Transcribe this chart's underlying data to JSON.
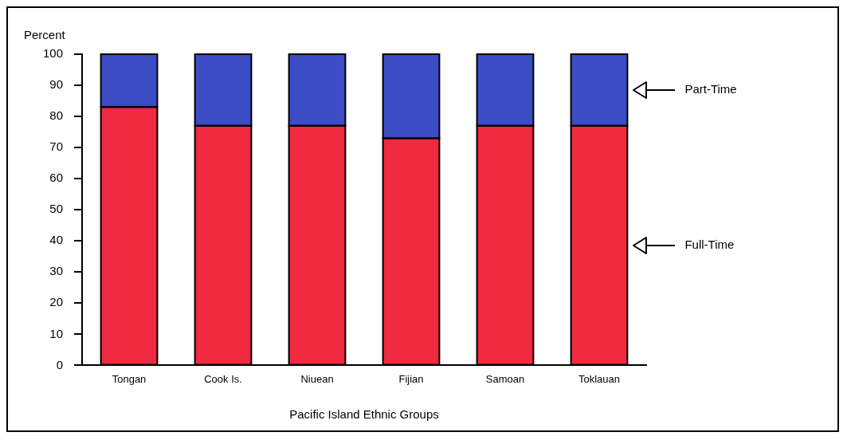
{
  "chart_data": {
    "type": "bar",
    "stacked": true,
    "ylabel": "Percent",
    "xlabel": "Pacific Island Ethnic Groups",
    "categories": [
      "Tongan",
      "Cook Is.",
      "Niuean",
      "Fijian",
      "Samoan",
      "Toklauan"
    ],
    "series": [
      {
        "name": "Full-Time",
        "color": "#f02a40",
        "values": [
          83,
          77,
          77,
          73,
          77,
          77
        ]
      },
      {
        "name": "Part-Time",
        "color": "#3c4cc4",
        "values": [
          17,
          23,
          23,
          27,
          23,
          23
        ]
      }
    ],
    "ylim": [
      0,
      100
    ],
    "yticks": [
      0,
      10,
      20,
      30,
      40,
      50,
      60,
      70,
      80,
      90,
      100
    ],
    "grid": false,
    "legend": "right"
  }
}
